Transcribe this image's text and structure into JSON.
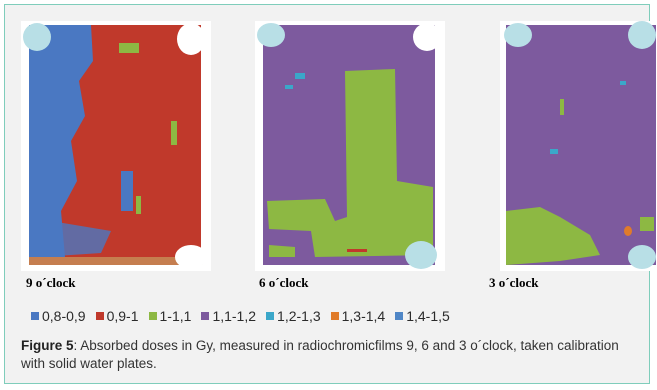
{
  "figure": {
    "films": [
      {
        "caption": "9 o´clock"
      },
      {
        "caption": "6 o´clock"
      },
      {
        "caption": "3 o´clock"
      }
    ],
    "legend": [
      {
        "label": "0,8-0,9",
        "color": "#4a78c2"
      },
      {
        "label": "0,9-1",
        "color": "#c0392b"
      },
      {
        "label": "1-1,1",
        "color": "#8db843"
      },
      {
        "label": "1,1-1,2",
        "color": "#7d5a9e"
      },
      {
        "label": "1,2-1,3",
        "color": "#3ba7c9"
      },
      {
        "label": "1,3-1,4",
        "color": "#e07b2a"
      },
      {
        "label": "1,4-1,5",
        "color": "#4f86c6"
      }
    ],
    "caption_label": "Figure 5",
    "caption_text": ": Absorbed doses in Gy, measured in radiochromicfilms 9, 6 and 3 o´clock, taken calibration with solid water plates."
  }
}
